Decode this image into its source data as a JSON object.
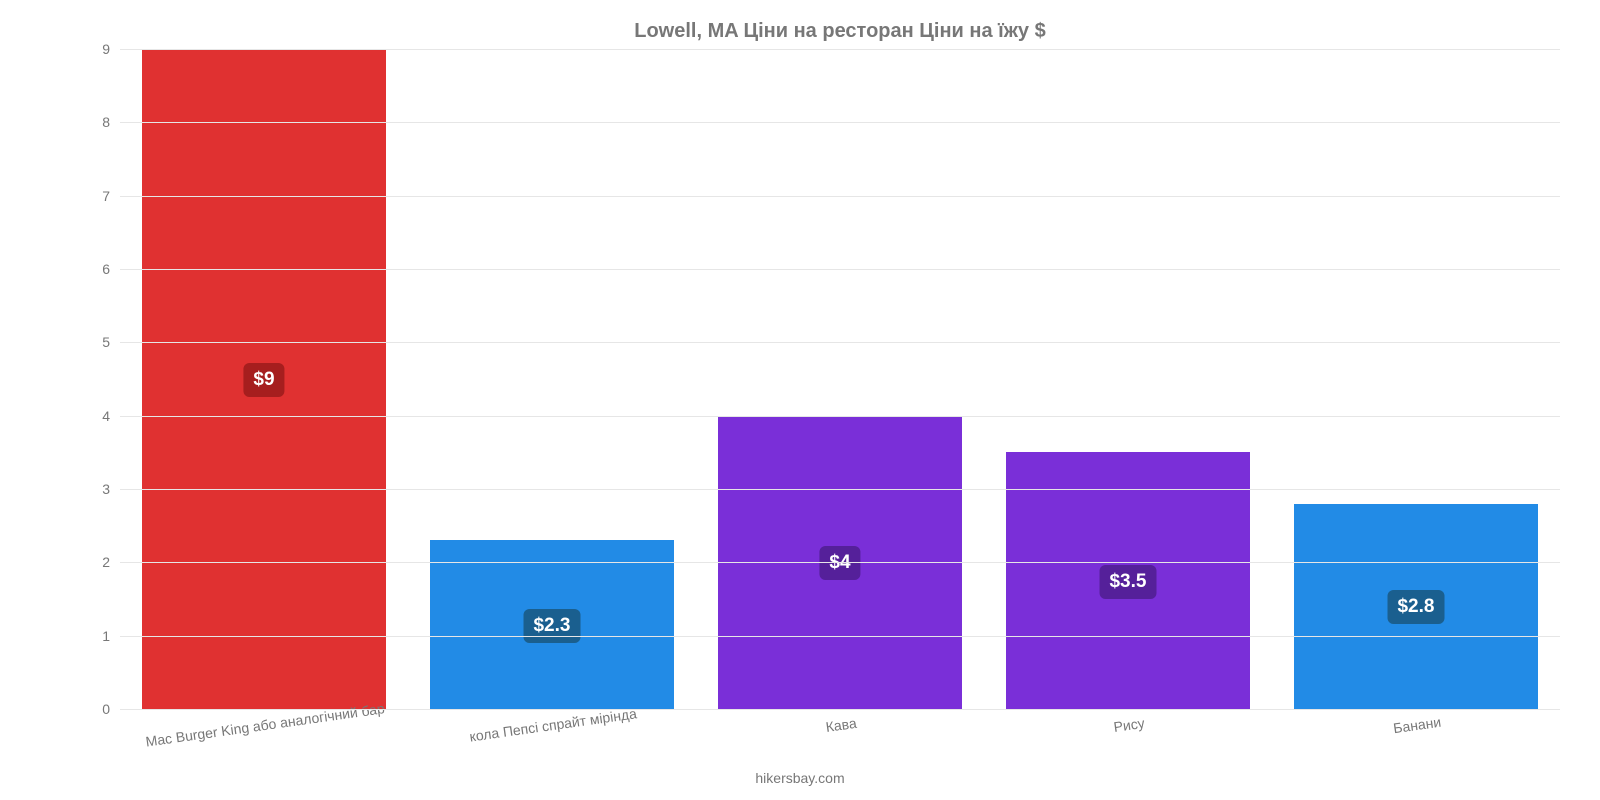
{
  "chart": {
    "type": "bar",
    "title": "Lowell, MA Ціни на ресторан Ціни на їжу $",
    "title_fontsize": 20,
    "title_color": "#777777",
    "background_color": "#ffffff",
    "grid_color": "#e6e6e6",
    "axis_label_color": "#777777",
    "axis_label_fontsize": 14,
    "ylim": [
      0,
      9
    ],
    "ytick_step": 1,
    "yticks": [
      "0",
      "1",
      "2",
      "3",
      "4",
      "5",
      "6",
      "7",
      "8",
      "9"
    ],
    "bar_width": 0.85,
    "value_label_fontsize": 19,
    "value_label_text_color": "#ffffff",
    "value_label_radius": 6,
    "x_label_rotation_deg": -8,
    "categories": [
      "Mac Burger King або аналогічний бар",
      "кола Пепсі спрайт мірінда",
      "Кава",
      "Рису",
      "Банани"
    ],
    "values": [
      9,
      2.3,
      4,
      3.5,
      2.8
    ],
    "value_labels": [
      "$9",
      "$2.3",
      "$4",
      "$3.5",
      "$2.8"
    ],
    "bar_colors": [
      "#e03131",
      "#228be6",
      "#7a2fd8",
      "#7a2fd8",
      "#228be6"
    ],
    "value_label_bg": [
      "#a61e1e",
      "#1a5f8f",
      "#55209a",
      "#55209a",
      "#1a5f8f"
    ],
    "credit": "hikersbay.com"
  }
}
